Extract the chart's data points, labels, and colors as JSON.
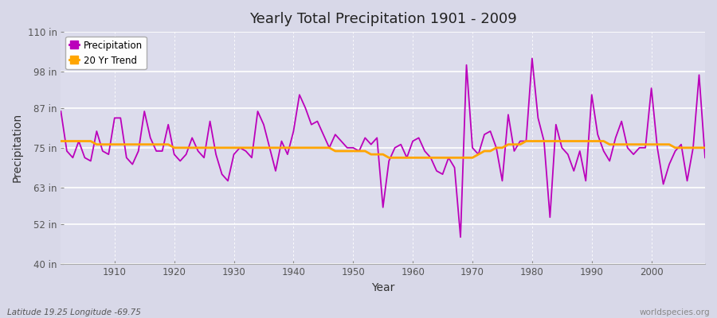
{
  "title": "Yearly Total Precipitation 1901 - 2009",
  "xlabel": "Year",
  "ylabel": "Precipitation",
  "bg_color": "#d8d8e8",
  "plot_bg_color": "#dcdcec",
  "precip_color": "#bb00bb",
  "trend_color": "#ffa500",
  "ylim": [
    40,
    110
  ],
  "yticks": [
    40,
    52,
    63,
    75,
    87,
    98,
    110
  ],
  "ytick_labels": [
    "40 in",
    "52 in",
    "63 in",
    "75 in",
    "87 in",
    "98 in",
    "110 in"
  ],
  "years": [
    1901,
    1902,
    1903,
    1904,
    1905,
    1906,
    1907,
    1908,
    1909,
    1910,
    1911,
    1912,
    1913,
    1914,
    1915,
    1916,
    1917,
    1918,
    1919,
    1920,
    1921,
    1922,
    1923,
    1924,
    1925,
    1926,
    1927,
    1928,
    1929,
    1930,
    1931,
    1932,
    1933,
    1934,
    1935,
    1936,
    1937,
    1938,
    1939,
    1940,
    1941,
    1942,
    1943,
    1944,
    1945,
    1946,
    1947,
    1948,
    1949,
    1950,
    1951,
    1952,
    1953,
    1954,
    1955,
    1956,
    1957,
    1958,
    1959,
    1960,
    1961,
    1962,
    1963,
    1964,
    1965,
    1966,
    1967,
    1968,
    1969,
    1970,
    1971,
    1972,
    1973,
    1974,
    1975,
    1976,
    1977,
    1978,
    1979,
    1980,
    1981,
    1982,
    1983,
    1984,
    1985,
    1986,
    1987,
    1988,
    1989,
    1990,
    1991,
    1992,
    1993,
    1994,
    1995,
    1996,
    1997,
    1998,
    1999,
    2000,
    2001,
    2002,
    2003,
    2004,
    2005,
    2006,
    2007,
    2008,
    2009
  ],
  "precip": [
    86,
    74,
    72,
    77,
    72,
    71,
    80,
    74,
    73,
    84,
    84,
    72,
    70,
    74,
    86,
    78,
    74,
    74,
    82,
    73,
    71,
    73,
    78,
    74,
    72,
    83,
    73,
    67,
    65,
    73,
    75,
    74,
    72,
    86,
    82,
    75,
    68,
    77,
    73,
    80,
    91,
    87,
    82,
    83,
    79,
    75,
    79,
    77,
    75,
    75,
    74,
    78,
    76,
    78,
    57,
    71,
    75,
    76,
    72,
    77,
    78,
    74,
    72,
    68,
    67,
    72,
    69,
    48,
    100,
    75,
    73,
    79,
    80,
    75,
    65,
    85,
    74,
    77,
    77,
    102,
    84,
    77,
    54,
    82,
    75,
    73,
    68,
    74,
    65,
    91,
    79,
    74,
    71,
    78,
    83,
    75,
    73,
    75,
    75,
    93,
    75,
    64,
    70,
    74,
    76,
    65,
    75,
    97,
    72
  ],
  "trend": [
    77,
    77,
    77,
    77,
    77,
    77,
    76,
    76,
    76,
    76,
    76,
    76,
    76,
    76,
    76,
    76,
    76,
    76,
    76,
    75,
    75,
    75,
    75,
    75,
    75,
    75,
    75,
    75,
    75,
    75,
    75,
    75,
    75,
    75,
    75,
    75,
    75,
    75,
    75,
    75,
    75,
    75,
    75,
    75,
    75,
    75,
    74,
    74,
    74,
    74,
    74,
    74,
    73,
    73,
    73,
    72,
    72,
    72,
    72,
    72,
    72,
    72,
    72,
    72,
    72,
    72,
    72,
    72,
    72,
    72,
    73,
    74,
    74,
    75,
    75,
    76,
    76,
    76,
    77,
    77,
    77,
    77,
    77,
    77,
    77,
    77,
    77,
    77,
    77,
    77,
    77,
    77,
    76,
    76,
    76,
    76,
    76,
    76,
    76,
    76,
    76,
    76,
    76,
    75,
    75,
    75,
    75,
    75,
    75
  ],
  "footer_left": "Latitude 19.25 Longitude -69.75",
  "footer_right": "worldspecies.org",
  "legend_precip": "Precipitation",
  "legend_trend": "20 Yr Trend"
}
